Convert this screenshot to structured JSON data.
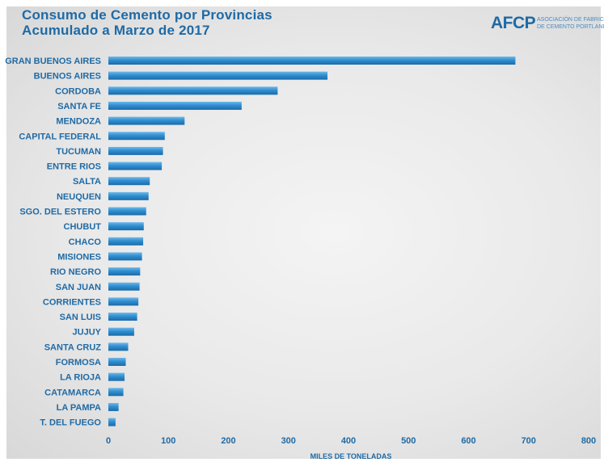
{
  "header": {
    "title_line1": "Consumo de Cemento por Provincias",
    "title_line2": "Acumulado a Marzo de 2017"
  },
  "logo": {
    "mark": "AFCP",
    "sub_line1": "ASOCIACIÓN DE FABRICANTES",
    "sub_line2": "DE CEMENTO PORTLAND"
  },
  "colors": {
    "accent": "#1f6aa5",
    "bar": "#2f8fd0"
  },
  "chart_data": {
    "type": "bar",
    "orientation": "horizontal",
    "title": "Consumo de Cemento por Provincias Acumulado a Marzo de 2017",
    "xlabel": "MILES DE TONELADAS",
    "ylabel": "",
    "xlim": [
      0,
      800
    ],
    "xticks": [
      0,
      100,
      200,
      300,
      400,
      500,
      600,
      700,
      800
    ],
    "grid": false,
    "categories": [
      "GRAN BUENOS AIRES",
      "BUENOS AIRES",
      "CORDOBA",
      "SANTA FE",
      "MENDOZA",
      "CAPITAL FEDERAL",
      "TUCUMAN",
      "ENTRE RIOS",
      "SALTA",
      "NEUQUEN",
      "SGO. DEL ESTERO",
      "CHUBUT",
      "CHACO",
      "MISIONES",
      "RIO NEGRO",
      "SAN JUAN",
      "CORRIENTES",
      "SAN LUIS",
      "JUJUY",
      "SANTA CRUZ",
      "FORMOSA",
      "LA RIOJA",
      "CATAMARCA",
      "LA PAMPA",
      "T. DEL FUEGO"
    ],
    "values": [
      678,
      365,
      282,
      222,
      127,
      94,
      91,
      89,
      69,
      67,
      63,
      59,
      58,
      56,
      53,
      52,
      50,
      48,
      43,
      33,
      29,
      27,
      25,
      17,
      12
    ]
  }
}
